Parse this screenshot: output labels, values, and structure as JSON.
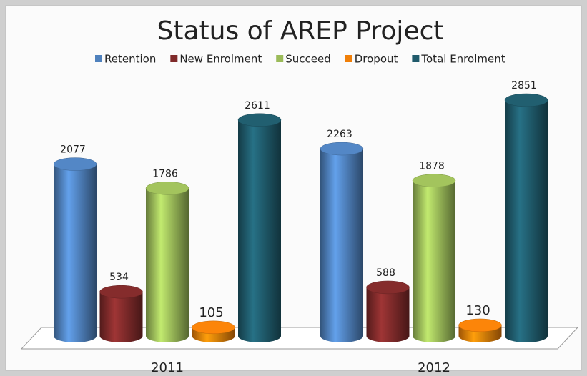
{
  "chart_data": {
    "type": "bar3d",
    "title": "Status of AREP Project",
    "categories": [
      "2011",
      "2012"
    ],
    "series": [
      {
        "name": "Retention",
        "color": "#4f81bd",
        "values": [
          2077,
          2263
        ]
      },
      {
        "name": "New Enrolment",
        "color": "#7f2a2a",
        "values": [
          534,
          588
        ]
      },
      {
        "name": "Succeed",
        "color": "#9bbb59",
        "values": [
          1786,
          1878
        ]
      },
      {
        "name": "Dropout",
        "color": "#f07f09",
        "values": [
          105,
          130
        ]
      },
      {
        "name": "Total Enrolment",
        "color": "#1f5a6b",
        "values": [
          2611,
          2851
        ]
      }
    ],
    "legend": "top"
  }
}
